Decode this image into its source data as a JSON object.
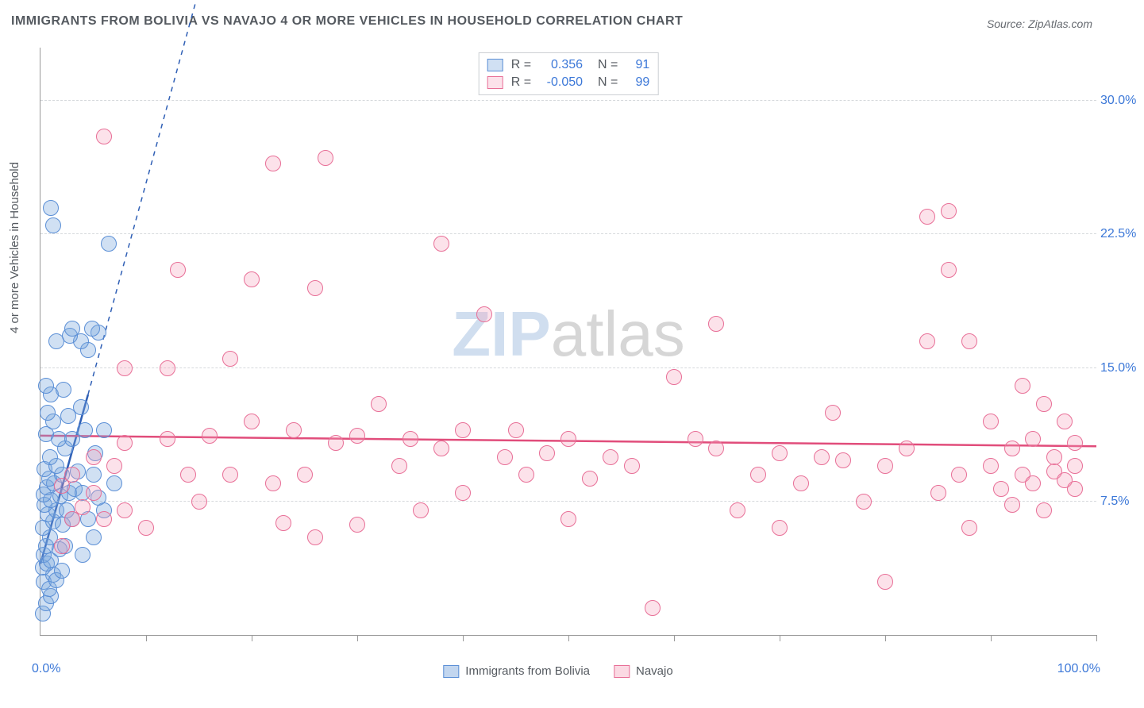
{
  "title": "IMMIGRANTS FROM BOLIVIA VS NAVAJO 4 OR MORE VEHICLES IN HOUSEHOLD CORRELATION CHART",
  "source_label": "Source:",
  "source_value": "ZipAtlas.com",
  "yaxis_title": "4 or more Vehicles in Household",
  "watermark_a": "ZIP",
  "watermark_b": "atlas",
  "chart": {
    "type": "scatter",
    "xlim": [
      0,
      100
    ],
    "ylim": [
      0,
      33
    ],
    "xticks_pct": [
      0,
      10,
      20,
      30,
      40,
      50,
      60,
      70,
      80,
      90,
      100
    ],
    "yticks": [
      {
        "v": 7.5,
        "label": "7.5%"
      },
      {
        "v": 15.0,
        "label": "15.0%"
      },
      {
        "v": 22.5,
        "label": "22.5%"
      },
      {
        "v": 30.0,
        "label": "30.0%"
      }
    ],
    "xmin_label": "0.0%",
    "xmax_label": "100.0%",
    "grid_color": "#d6d9dc",
    "background_color": "#ffffff",
    "point_radius": 9,
    "series": [
      {
        "name": "Immigrants from Bolivia",
        "fill": "rgba(120,165,220,0.35)",
        "stroke": "#5b8fd6",
        "line_color": "#2f5fb5",
        "R": "0.356",
        "N": "91",
        "trend": {
          "x1": 0,
          "y1": 4.0,
          "x2": 4.5,
          "y2": 13.5,
          "dash_x2": 26,
          "dash_y2": 60
        },
        "data": [
          [
            0.2,
            1.2
          ],
          [
            0.5,
            1.8
          ],
          [
            1.0,
            2.2
          ],
          [
            0.3,
            3.0
          ],
          [
            0.8,
            2.6
          ],
          [
            1.2,
            3.4
          ],
          [
            0.2,
            3.8
          ],
          [
            1.5,
            3.1
          ],
          [
            0.6,
            4.0
          ],
          [
            0.3,
            4.5
          ],
          [
            1.0,
            4.2
          ],
          [
            2.0,
            3.6
          ],
          [
            0.5,
            5.0
          ],
          [
            1.8,
            4.8
          ],
          [
            0.9,
            5.5
          ],
          [
            2.3,
            5.0
          ],
          [
            0.2,
            6.0
          ],
          [
            1.2,
            6.4
          ],
          [
            2.1,
            6.2
          ],
          [
            0.7,
            6.8
          ],
          [
            1.5,
            7.0
          ],
          [
            0.4,
            7.3
          ],
          [
            2.5,
            7.0
          ],
          [
            3.0,
            6.5
          ],
          [
            1.0,
            7.6
          ],
          [
            0.3,
            7.9
          ],
          [
            1.9,
            7.8
          ],
          [
            2.7,
            8.0
          ],
          [
            0.6,
            8.3
          ],
          [
            1.3,
            8.5
          ],
          [
            3.2,
            8.2
          ],
          [
            4.0,
            8.0
          ],
          [
            0.8,
            8.8
          ],
          [
            2.0,
            9.0
          ],
          [
            0.4,
            9.3
          ],
          [
            1.5,
            9.5
          ],
          [
            3.5,
            9.2
          ],
          [
            5.0,
            9.0
          ],
          [
            0.9,
            10.0
          ],
          [
            2.3,
            10.5
          ],
          [
            1.7,
            11.0
          ],
          [
            0.5,
            11.3
          ],
          [
            3.0,
            11.0
          ],
          [
            4.2,
            11.5
          ],
          [
            1.2,
            12.0
          ],
          [
            2.6,
            12.3
          ],
          [
            0.7,
            12.5
          ],
          [
            3.8,
            12.8
          ],
          [
            5.2,
            10.2
          ],
          [
            6.0,
            11.5
          ],
          [
            1.0,
            13.5
          ],
          [
            2.2,
            13.8
          ],
          [
            0.5,
            14.0
          ],
          [
            4.5,
            16.0
          ],
          [
            3.8,
            16.5
          ],
          [
            1.5,
            16.5
          ],
          [
            2.8,
            16.8
          ],
          [
            5.5,
            17.0
          ],
          [
            4.9,
            17.2
          ],
          [
            3.0,
            17.2
          ],
          [
            1.0,
            24.0
          ],
          [
            1.2,
            23.0
          ],
          [
            6.5,
            22.0
          ],
          [
            4.0,
            4.5
          ],
          [
            5.0,
            5.5
          ],
          [
            6.0,
            7.0
          ],
          [
            7.0,
            8.5
          ],
          [
            5.5,
            7.7
          ],
          [
            4.5,
            6.5
          ]
        ]
      },
      {
        "name": "Navajo",
        "fill": "rgba(245,160,185,0.30)",
        "stroke": "#e86f97",
        "line_color": "#e14d7b",
        "R": "-0.050",
        "N": "99",
        "trend": {
          "x1": 0,
          "y1": 11.2,
          "x2": 100,
          "y2": 10.6
        },
        "data": [
          [
            2,
            8.4
          ],
          [
            3,
            9.0
          ],
          [
            4,
            7.2
          ],
          [
            5,
            10.0
          ],
          [
            5,
            8.0
          ],
          [
            6,
            6.5
          ],
          [
            7,
            9.5
          ],
          [
            8,
            10.8
          ],
          [
            8,
            7.0
          ],
          [
            10,
            6.0
          ],
          [
            12,
            11.0
          ],
          [
            12,
            15.0
          ],
          [
            13,
            20.5
          ],
          [
            14,
            9.0
          ],
          [
            15,
            7.5
          ],
          [
            16,
            11.2
          ],
          [
            18,
            15.5
          ],
          [
            18,
            9.0
          ],
          [
            20,
            12.0
          ],
          [
            20,
            20.0
          ],
          [
            22,
            8.5
          ],
          [
            23,
            6.3
          ],
          [
            24,
            11.5
          ],
          [
            25,
            9.0
          ],
          [
            26,
            19.5
          ],
          [
            26,
            5.5
          ],
          [
            28,
            10.8
          ],
          [
            30,
            11.2
          ],
          [
            30,
            6.2
          ],
          [
            32,
            13.0
          ],
          [
            34,
            9.5
          ],
          [
            35,
            11.0
          ],
          [
            36,
            7.0
          ],
          [
            38,
            22.0
          ],
          [
            38,
            10.5
          ],
          [
            40,
            11.5
          ],
          [
            40,
            8.0
          ],
          [
            42,
            18.0
          ],
          [
            44,
            10.0
          ],
          [
            45,
            11.5
          ],
          [
            46,
            9.0
          ],
          [
            48,
            10.2
          ],
          [
            50,
            11.0
          ],
          [
            50,
            6.5
          ],
          [
            52,
            8.8
          ],
          [
            54,
            10.0
          ],
          [
            56,
            9.5
          ],
          [
            58,
            1.5
          ],
          [
            60,
            14.5
          ],
          [
            62,
            11.0
          ],
          [
            64,
            10.5
          ],
          [
            64,
            17.5
          ],
          [
            66,
            7.0
          ],
          [
            68,
            9.0
          ],
          [
            70,
            10.2
          ],
          [
            70,
            6.0
          ],
          [
            72,
            8.5
          ],
          [
            74,
            10.0
          ],
          [
            75,
            12.5
          ],
          [
            76,
            9.8
          ],
          [
            78,
            7.5
          ],
          [
            80,
            9.5
          ],
          [
            80,
            3.0
          ],
          [
            82,
            10.5
          ],
          [
            84,
            23.5
          ],
          [
            84,
            16.5
          ],
          [
            85,
            8.0
          ],
          [
            86,
            20.5
          ],
          [
            86,
            23.8
          ],
          [
            87,
            9.0
          ],
          [
            88,
            16.5
          ],
          [
            88,
            6.0
          ],
          [
            90,
            12.0
          ],
          [
            90,
            9.5
          ],
          [
            91,
            8.2
          ],
          [
            92,
            10.5
          ],
          [
            92,
            7.3
          ],
          [
            93,
            14.0
          ],
          [
            93,
            9.0
          ],
          [
            94,
            11.0
          ],
          [
            94,
            8.5
          ],
          [
            95,
            13.0
          ],
          [
            95,
            7.0
          ],
          [
            96,
            10.0
          ],
          [
            96,
            9.2
          ],
          [
            97,
            8.7
          ],
          [
            97,
            12.0
          ],
          [
            98,
            9.5
          ],
          [
            98,
            10.8
          ],
          [
            98,
            8.2
          ],
          [
            6,
            28.0
          ],
          [
            22,
            26.5
          ],
          [
            27,
            26.8
          ],
          [
            8,
            15.0
          ],
          [
            3,
            6.5
          ],
          [
            2,
            5.0
          ]
        ]
      }
    ]
  },
  "legend_bottom": [
    {
      "label": "Immigrants from Bolivia",
      "fill": "rgba(120,165,220,0.45)",
      "stroke": "#5b8fd6"
    },
    {
      "label": "Navajo",
      "fill": "rgba(245,160,185,0.40)",
      "stroke": "#e86f97"
    }
  ]
}
